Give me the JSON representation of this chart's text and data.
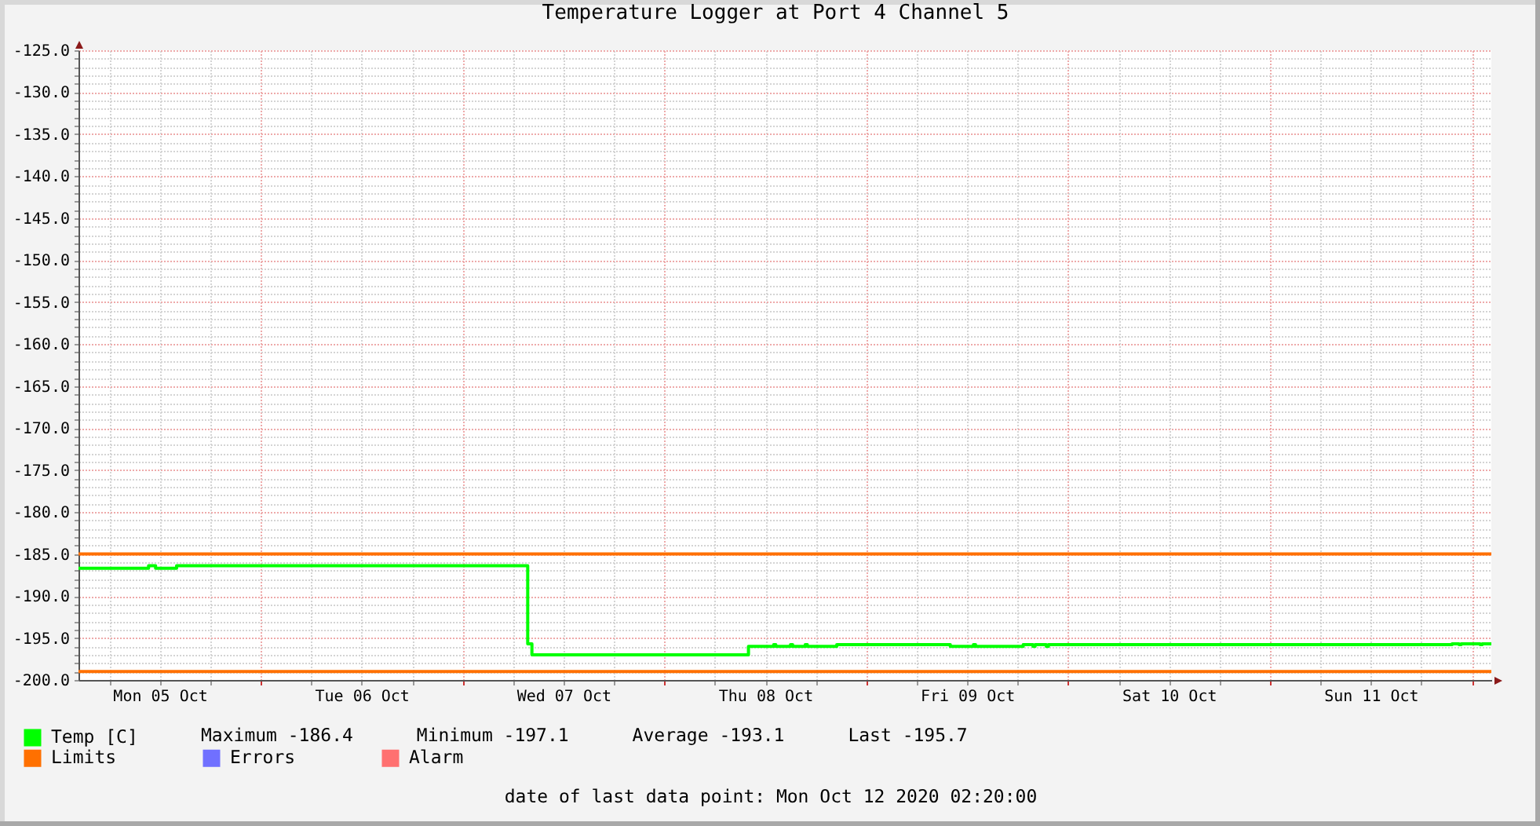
{
  "chart_data": {
    "type": "step",
    "title": "Temperature Logger at Port 4 Channel 5",
    "x": [
      "2020-10-05T02:20",
      "2020-10-05T10:40",
      "2020-10-05T11:30",
      "2020-10-05T14:00",
      "2020-10-07T07:45",
      "2020-10-07T08:15",
      "2020-10-08T10:00",
      "2020-10-08T13:00",
      "2020-10-08T13:15",
      "2020-10-08T15:00",
      "2020-10-08T15:15",
      "2020-10-08T16:45",
      "2020-10-08T17:00",
      "2020-10-08T20:30",
      "2020-10-09T10:00",
      "2020-10-09T12:45",
      "2020-10-09T13:00",
      "2020-10-09T18:40",
      "2020-10-09T19:50",
      "2020-10-09T20:05",
      "2020-10-09T21:25",
      "2020-10-09T21:40",
      "2020-10-11T21:40",
      "2020-10-11T22:30",
      "2020-10-11T22:45",
      "2020-10-12T01:00",
      "2020-10-12T01:15",
      "2020-10-12T02:20"
    ],
    "series": [
      {
        "name": "Temp [C]",
        "color": "#00ff00",
        "values": [
          -186.7,
          -186.4,
          -186.7,
          -186.4,
          -195.7,
          -197.0,
          -196.0,
          -195.8,
          -196.0,
          -195.8,
          -196.0,
          -195.8,
          -196.0,
          -195.8,
          -196.0,
          -195.8,
          -196.0,
          -195.8,
          -196.0,
          -195.8,
          -196.0,
          -195.8,
          -195.7,
          -195.8,
          -195.7,
          -195.8,
          -195.7,
          -195.7
        ]
      },
      {
        "name": "Limits",
        "type": "line",
        "color": "#ff7000",
        "x": [
          "2020-10-05T02:20",
          "2020-10-12T02:20"
        ],
        "values": [
          -185,
          -185
        ]
      },
      {
        "type": "line",
        "color": "#ff7000",
        "x": [
          "2020-10-05T02:20",
          "2020-10-12T02:20"
        ],
        "values": [
          -199,
          -199
        ]
      },
      {
        "name": "Errors",
        "color": "#7070ff",
        "values": [
          null,
          null,
          null,
          null,
          null,
          null,
          null,
          null,
          null,
          null,
          null,
          null,
          null,
          null,
          null,
          null,
          null,
          null,
          null,
          null,
          null,
          null,
          null,
          null,
          null,
          null,
          null,
          null
        ]
      },
      {
        "name": "Alarm",
        "color": "#ff7070",
        "values": [
          null,
          null,
          null,
          null,
          null,
          null,
          null,
          null,
          null,
          null,
          null,
          null,
          null,
          null,
          null,
          null,
          null,
          null,
          null,
          null,
          null,
          null,
          null,
          null,
          null,
          null,
          null,
          null
        ]
      }
    ],
    "annotations": [
      "Maximum -186.4",
      "Minimum -197.1",
      "Average -193.1",
      "Last -195.7",
      "date of last data point: Mon Oct 12 2020 02:20:00"
    ],
    "xlim": [
      "2020-10-05T02:20",
      "2020-10-12T02:20"
    ],
    "xticks": [
      {
        "value": "2020-10-05T06:00",
        "label": null
      },
      {
        "value": "2020-10-05T12:00",
        "label": "Mon 05 Oct"
      },
      {
        "value": "2020-10-05T18:00",
        "label": null
      },
      {
        "value": "2020-10-06T00:00",
        "label": null
      },
      {
        "value": "2020-10-06T06:00",
        "label": null
      },
      {
        "value": "2020-10-06T12:00",
        "label": "Tue 06 Oct"
      },
      {
        "value": "2020-10-06T18:00",
        "label": null
      },
      {
        "value": "2020-10-07T00:00",
        "label": null
      },
      {
        "value": "2020-10-07T06:00",
        "label": null
      },
      {
        "value": "2020-10-07T12:00",
        "label": "Wed 07 Oct"
      },
      {
        "value": "2020-10-07T18:00",
        "label": null
      },
      {
        "value": "2020-10-08T00:00",
        "label": null
      },
      {
        "value": "2020-10-08T06:00",
        "label": null
      },
      {
        "value": "2020-10-08T12:00",
        "label": "Thu 08 Oct"
      },
      {
        "value": "2020-10-08T18:00",
        "label": null
      },
      {
        "value": "2020-10-09T00:00",
        "label": null
      },
      {
        "value": "2020-10-09T06:00",
        "label": null
      },
      {
        "value": "2020-10-09T12:00",
        "label": "Fri 09 Oct"
      },
      {
        "value": "2020-10-09T18:00",
        "label": null
      },
      {
        "value": "2020-10-10T00:00",
        "label": null
      },
      {
        "value": "2020-10-10T06:00",
        "label": null
      },
      {
        "value": "2020-10-10T12:00",
        "label": "Sat 10 Oct"
      },
      {
        "value": "2020-10-10T18:00",
        "label": null
      },
      {
        "value": "2020-10-11T00:00",
        "label": null
      },
      {
        "value": "2020-10-11T06:00",
        "label": null
      },
      {
        "value": "2020-10-11T12:00",
        "label": "Sun 11 Oct"
      },
      {
        "value": "2020-10-11T18:00",
        "label": null
      },
      {
        "value": "2020-10-12T00:00",
        "label": null
      }
    ],
    "ylim": [
      -200,
      -125
    ],
    "yticks": [
      {
        "value": -200,
        "label": "-200.0"
      },
      {
        "value": -199,
        "label": null
      },
      {
        "value": -198,
        "label": null
      },
      {
        "value": -197,
        "label": null
      },
      {
        "value": -196,
        "label": null
      },
      {
        "value": -195,
        "label": "-195.0"
      },
      {
        "value": -194,
        "label": null
      },
      {
        "value": -193,
        "label": null
      },
      {
        "value": -192,
        "label": null
      },
      {
        "value": -191,
        "label": null
      },
      {
        "value": -190,
        "label": "-190.0"
      },
      {
        "value": -189,
        "label": null
      },
      {
        "value": -188,
        "label": null
      },
      {
        "value": -187,
        "label": null
      },
      {
        "value": -186,
        "label": null
      },
      {
        "value": -185,
        "label": "-185.0"
      },
      {
        "value": -184,
        "label": null
      },
      {
        "value": -183,
        "label": null
      },
      {
        "value": -182,
        "label": null
      },
      {
        "value": -181,
        "label": null
      },
      {
        "value": -180,
        "label": "-180.0"
      },
      {
        "value": -179,
        "label": null
      },
      {
        "value": -178,
        "label": null
      },
      {
        "value": -177,
        "label": null
      },
      {
        "value": -176,
        "label": null
      },
      {
        "value": -175,
        "label": "-175.0"
      },
      {
        "value": -174,
        "label": null
      },
      {
        "value": -173,
        "label": null
      },
      {
        "value": -172,
        "label": null
      },
      {
        "value": -171,
        "label": null
      },
      {
        "value": -170,
        "label": "-170.0"
      },
      {
        "value": -169,
        "label": null
      },
      {
        "value": -168,
        "label": null
      },
      {
        "value": -167,
        "label": null
      },
      {
        "value": -166,
        "label": null
      },
      {
        "value": -165,
        "label": "-165.0"
      },
      {
        "value": -164,
        "label": null
      },
      {
        "value": -163,
        "label": null
      },
      {
        "value": -162,
        "label": null
      },
      {
        "value": -161,
        "label": null
      },
      {
        "value": -160,
        "label": "-160.0"
      },
      {
        "value": -159,
        "label": null
      },
      {
        "value": -158,
        "label": null
      },
      {
        "value": -157,
        "label": null
      },
      {
        "value": -156,
        "label": null
      },
      {
        "value": -155,
        "label": "-155.0"
      },
      {
        "value": -154,
        "label": null
      },
      {
        "value": -153,
        "label": null
      },
      {
        "value": -152,
        "label": null
      },
      {
        "value": -151,
        "label": null
      },
      {
        "value": -150,
        "label": "-150.0"
      },
      {
        "value": -149,
        "label": null
      },
      {
        "value": -148,
        "label": null
      },
      {
        "value": -147,
        "label": null
      },
      {
        "value": -146,
        "label": null
      },
      {
        "value": -145,
        "label": "-145.0"
      },
      {
        "value": -144,
        "label": null
      },
      {
        "value": -143,
        "label": null
      },
      {
        "value": -142,
        "label": null
      },
      {
        "value": -141,
        "label": null
      },
      {
        "value": -140,
        "label": "-140.0"
      },
      {
        "value": -139,
        "label": null
      },
      {
        "value": -138,
        "label": null
      },
      {
        "value": -137,
        "label": null
      },
      {
        "value": -136,
        "label": null
      },
      {
        "value": -135,
        "label": "-135.0"
      },
      {
        "value": -134,
        "label": null
      },
      {
        "value": -133,
        "label": null
      },
      {
        "value": -132,
        "label": null
      },
      {
        "value": -131,
        "label": null
      },
      {
        "value": -130,
        "label": "-130.0"
      },
      {
        "value": -129,
        "label": null
      },
      {
        "value": -128,
        "label": null
      },
      {
        "value": -127,
        "label": null
      },
      {
        "value": -126,
        "label": null
      },
      {
        "value": -125,
        "label": "-125.0"
      }
    ],
    "grid": true,
    "legend": "bottom left"
  }
}
